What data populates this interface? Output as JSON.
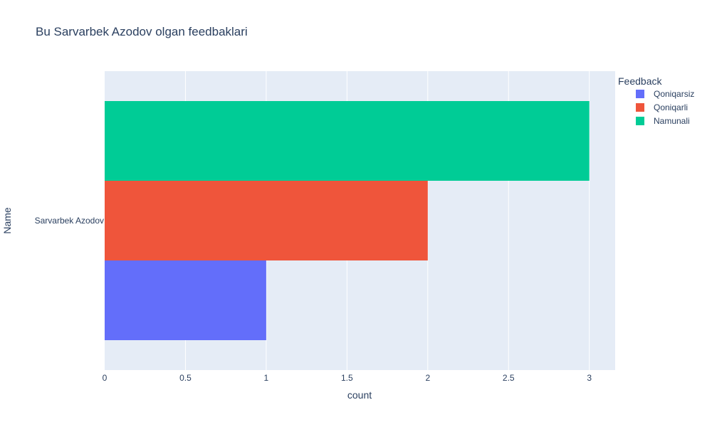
{
  "chart_data": {
    "type": "bar",
    "orientation": "horizontal",
    "barmode": "group",
    "title": "Bu Sarvarbek Azodov olgan feedbaklari",
    "xlabel": "count",
    "ylabel": "Name",
    "categories": [
      "Sarvarbek Azodov"
    ],
    "series": [
      {
        "name": "Qoniqarsiz",
        "values": [
          1
        ],
        "color": "#636efa"
      },
      {
        "name": "Qoniqarli",
        "values": [
          2
        ],
        "color": "#ef553b"
      },
      {
        "name": "Namunali",
        "values": [
          3
        ],
        "color": "#00cc96"
      }
    ],
    "xlim": [
      0,
      3.16
    ],
    "xticks": [
      "0",
      "0.5",
      "1",
      "1.5",
      "2",
      "2.5",
      "3"
    ],
    "grid": true,
    "legend": {
      "title": "Feedback",
      "position": "right"
    },
    "colors": {
      "plot_bg": "#e5ecf6",
      "grid": "#ffffff",
      "text": "#2a3f5f"
    }
  }
}
